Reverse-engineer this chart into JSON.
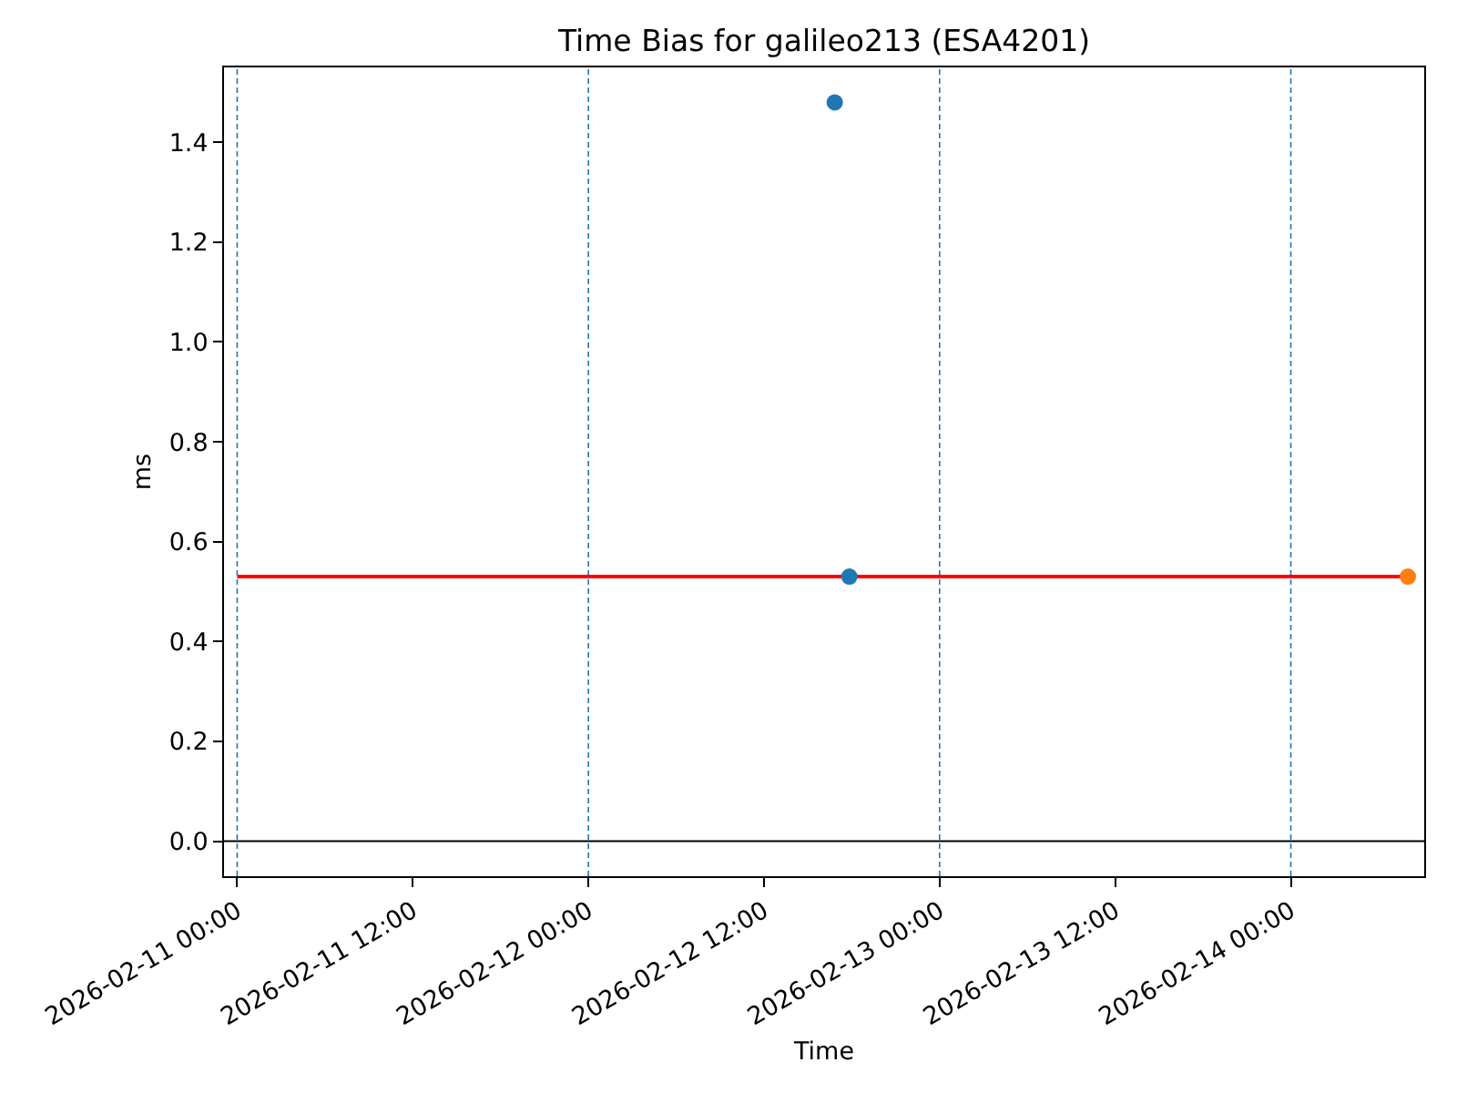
{
  "chart_data": {
    "type": "scatter",
    "title": "Time Bias for galileo213 (ESA4201)",
    "xlabel": "Time",
    "ylabel": "ms",
    "series": [
      {
        "type": "line",
        "color": "#ff0000",
        "marker": "none",
        "x": [
          "2026-02-11T00:00",
          "2026-02-14T08:00"
        ],
        "values": [
          0.53,
          0.53
        ]
      },
      {
        "color": "#1f77b4",
        "marker": "circle",
        "x": [
          "2026-02-12T16:50",
          "2026-02-12T17:50"
        ],
        "values": [
          1.48,
          0.53
        ]
      },
      {
        "color": "#ff7f0e",
        "marker": "circle",
        "x": [
          "2026-02-14T08:00"
        ],
        "values": [
          0.53
        ]
      }
    ],
    "xlim": [
      "2026-02-10T23:06",
      "2026-02-14T09:07"
    ],
    "xticks": [
      {
        "value": "2026-02-11T00:00",
        "label": "2026-02-11 00:00"
      },
      {
        "value": "2026-02-11T12:00",
        "label": "2026-02-11 12:00"
      },
      {
        "value": "2026-02-12T00:00",
        "label": "2026-02-12 00:00"
      },
      {
        "value": "2026-02-12T12:00",
        "label": "2026-02-12 12:00"
      },
      {
        "value": "2026-02-13T00:00",
        "label": "2026-02-13 00:00"
      },
      {
        "value": "2026-02-13T12:00",
        "label": "2026-02-13 12:00"
      },
      {
        "value": "2026-02-14T00:00",
        "label": "2026-02-14 00:00"
      }
    ],
    "ylim": [
      -0.07,
      1.55
    ],
    "yticks": [
      {
        "value": 0,
        "label": "0.0"
      },
      0.2,
      0.4,
      0.6,
      0.8,
      {
        "value": 1,
        "label": "1.0"
      },
      1.2,
      1.4
    ],
    "ref_lines": [
      {
        "axis": "x",
        "value": "2026-02-11T00:00",
        "color": "#1f77b4",
        "line_style": "dashed"
      },
      {
        "axis": "x",
        "value": "2026-02-12T00:00",
        "color": "#1f77b4",
        "line_style": "dashed"
      },
      {
        "axis": "x",
        "value": "2026-02-13T00:00",
        "color": "#1f77b4",
        "line_style": "dashed"
      },
      {
        "axis": "x",
        "value": "2026-02-14T00:00",
        "color": "#1f77b4",
        "line_style": "dashed"
      },
      {
        "axis": "y",
        "value": 0,
        "color": "#000000",
        "line_style": "solid"
      }
    ],
    "grid": false
  }
}
